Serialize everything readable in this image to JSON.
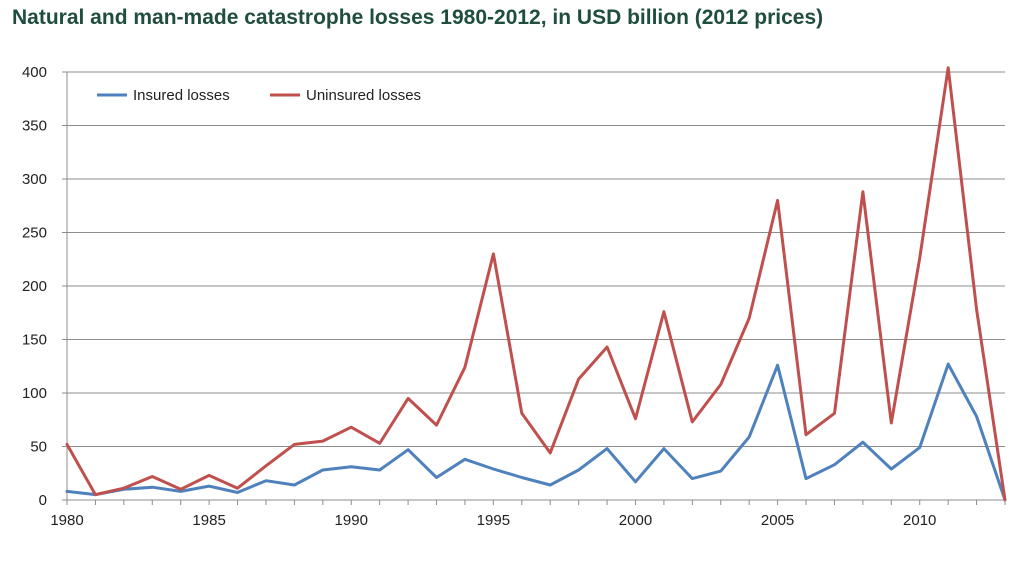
{
  "chart_data": {
    "type": "line",
    "title": "Natural and man-made catastrophe losses 1980-2012, in USD billion (2012 prices)",
    "xlabel": "",
    "ylabel": "",
    "x": [
      1980,
      1981,
      1982,
      1983,
      1984,
      1985,
      1986,
      1987,
      1988,
      1989,
      1990,
      1991,
      1992,
      1993,
      1994,
      1995,
      1996,
      1997,
      1998,
      1999,
      2000,
      2001,
      2002,
      2003,
      2004,
      2005,
      2006,
      2007,
      2008,
      2009,
      2010,
      2011,
      2012,
      2013
    ],
    "xlim": [
      1980,
      2013
    ],
    "ylim": [
      0,
      400
    ],
    "x_ticks": [
      1980,
      1985,
      1990,
      1995,
      2000,
      2005,
      2010
    ],
    "y_ticks": [
      0,
      50,
      100,
      150,
      200,
      250,
      300,
      350,
      400
    ],
    "grid": "horizontal",
    "legend_position": "top-left",
    "series": [
      {
        "name": "Insured losses",
        "color": "#4f81bd",
        "values": [
          8,
          5,
          10,
          12,
          8,
          13,
          7,
          18,
          14,
          28,
          31,
          28,
          47,
          21,
          38,
          29,
          21,
          14,
          28,
          48,
          17,
          48,
          20,
          27,
          59,
          126,
          20,
          33,
          54,
          29,
          49,
          127,
          78,
          0
        ]
      },
      {
        "name": "Uninsured losses",
        "color": "#c0504d",
        "values": [
          52,
          5,
          11,
          22,
          10,
          23,
          11,
          32,
          52,
          55,
          68,
          53,
          95,
          70,
          124,
          230,
          81,
          44,
          113,
          143,
          76,
          176,
          73,
          108,
          170,
          280,
          61,
          81,
          288,
          72,
          226,
          404,
          178,
          0
        ]
      }
    ]
  }
}
